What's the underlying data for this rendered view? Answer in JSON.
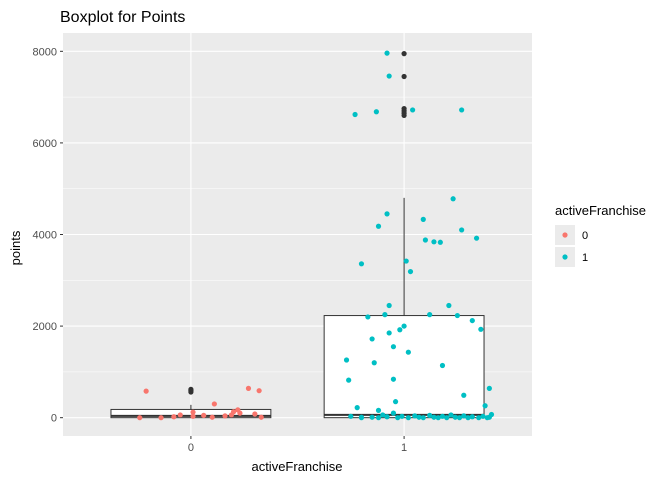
{
  "chart_data": {
    "type": "box",
    "title": "Boxplot for Points",
    "xlabel": "activeFranchise",
    "ylabel": "points",
    "categories": [
      "0",
      "1"
    ],
    "ylim": [
      -400,
      8400
    ],
    "y_ticks": [
      0,
      2000,
      4000,
      6000,
      8000
    ],
    "grid": true,
    "legend": {
      "title": "activeFranchise",
      "placement": "right",
      "entries": [
        {
          "label": "0",
          "color": "#F8766D"
        },
        {
          "label": "1",
          "color": "#00BFC4"
        }
      ]
    },
    "boxes": [
      {
        "category": "0",
        "q1": 0,
        "median": 40,
        "q3": 180,
        "whisker_low": 0,
        "whisker_high": 280,
        "outliers": [
          560,
          590,
          620
        ]
      },
      {
        "category": "1",
        "q1": 0,
        "median": 60,
        "q3": 2230,
        "whisker_low": 0,
        "whisker_high": 4800,
        "outliers": [
          6600,
          6650,
          6700,
          6750,
          7450,
          7950
        ]
      }
    ],
    "series": [
      {
        "name": "0",
        "color": "#F8766D",
        "points": [
          [
            -0.21,
            580
          ],
          [
            -0.24,
            0
          ],
          [
            -0.14,
            0
          ],
          [
            -0.08,
            20
          ],
          [
            -0.05,
            60
          ],
          [
            0.01,
            30
          ],
          [
            0.01,
            120
          ],
          [
            0.06,
            50
          ],
          [
            0.1,
            10
          ],
          [
            0.11,
            300
          ],
          [
            0.16,
            40
          ],
          [
            0.19,
            60
          ],
          [
            0.2,
            130
          ],
          [
            0.22,
            170
          ],
          [
            0.23,
            100
          ],
          [
            0.27,
            640
          ],
          [
            0.3,
            80
          ],
          [
            0.32,
            590
          ],
          [
            0.33,
            10
          ]
        ]
      },
      {
        "name": "1",
        "color": "#00BFC4",
        "points": [
          [
            0.77,
            6620
          ],
          [
            0.87,
            6680
          ],
          [
            0.92,
            7960
          ],
          [
            0.93,
            7460
          ],
          [
            1.04,
            6720
          ],
          [
            1.27,
            6720
          ],
          [
            0.8,
            3360
          ],
          [
            0.88,
            4180
          ],
          [
            0.92,
            4450
          ],
          [
            1.01,
            3420
          ],
          [
            1.03,
            3190
          ],
          [
            1.09,
            4330
          ],
          [
            1.1,
            3880
          ],
          [
            1.14,
            3840
          ],
          [
            1.17,
            3830
          ],
          [
            1.23,
            4780
          ],
          [
            1.27,
            4100
          ],
          [
            1.34,
            3920
          ],
          [
            0.73,
            1260
          ],
          [
            0.74,
            820
          ],
          [
            0.78,
            220
          ],
          [
            0.8,
            10
          ],
          [
            0.83,
            2200
          ],
          [
            0.85,
            1720
          ],
          [
            0.86,
            1200
          ],
          [
            0.88,
            160
          ],
          [
            0.91,
            2250
          ],
          [
            0.93,
            2450
          ],
          [
            0.93,
            1850
          ],
          [
            0.95,
            1550
          ],
          [
            0.95,
            840
          ],
          [
            0.96,
            350
          ],
          [
            0.98,
            1920
          ],
          [
            1.0,
            2000
          ],
          [
            1.02,
            1430
          ],
          [
            1.12,
            2250
          ],
          [
            1.18,
            1140
          ],
          [
            1.21,
            2450
          ],
          [
            1.25,
            2230
          ],
          [
            1.28,
            490
          ],
          [
            1.32,
            2120
          ],
          [
            1.36,
            1930
          ],
          [
            1.38,
            260
          ],
          [
            1.4,
            640
          ],
          [
            1.41,
            70
          ],
          [
            0.75,
            30
          ],
          [
            0.8,
            0
          ],
          [
            0.85,
            10
          ],
          [
            0.88,
            0
          ],
          [
            0.9,
            60
          ],
          [
            0.92,
            20
          ],
          [
            0.95,
            100
          ],
          [
            0.97,
            0
          ],
          [
            0.99,
            30
          ],
          [
            1.02,
            0
          ],
          [
            1.05,
            40
          ],
          [
            1.07,
            10
          ],
          [
            1.09,
            0
          ],
          [
            1.12,
            50
          ],
          [
            1.14,
            10
          ],
          [
            1.16,
            0
          ],
          [
            1.18,
            30
          ],
          [
            1.2,
            0
          ],
          [
            1.22,
            60
          ],
          [
            1.24,
            10
          ],
          [
            1.26,
            0
          ],
          [
            1.28,
            40
          ],
          [
            1.3,
            0
          ],
          [
            1.32,
            20
          ],
          [
            1.35,
            0
          ],
          [
            1.37,
            30
          ],
          [
            1.39,
            0
          ],
          [
            1.4,
            10
          ]
        ]
      }
    ]
  },
  "colors": {
    "panel_bg": "#EBEBEB",
    "grid": "#FFFFFF",
    "box_fill": "#FFFFFF",
    "box_line": "#333333",
    "outlier": "#333333"
  }
}
